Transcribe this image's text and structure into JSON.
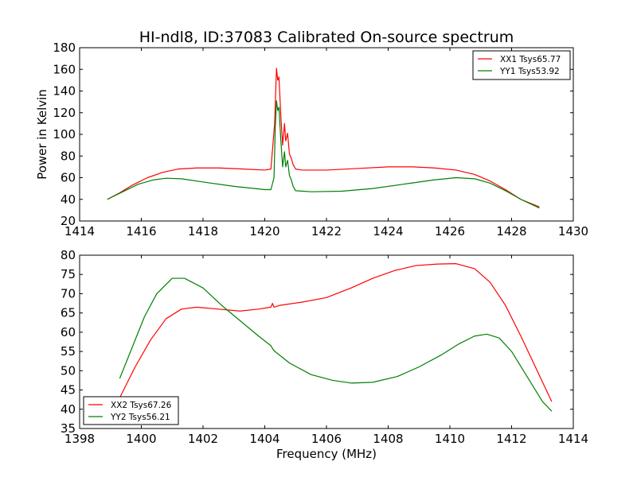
{
  "title": "HI-ndl8, ID:37083 Calibrated On-source spectrum",
  "chart_data": [
    {
      "type": "line",
      "ylabel": "Power in Kelvin",
      "xlabel": "",
      "xlim": [
        1414,
        1430
      ],
      "ylim": [
        20,
        180
      ],
      "xticks": [
        1414,
        1416,
        1418,
        1420,
        1422,
        1424,
        1426,
        1428,
        1430
      ],
      "yticks": [
        20,
        40,
        60,
        80,
        100,
        120,
        140,
        160,
        180
      ],
      "legend": "top-right",
      "series": [
        {
          "name": "XX1 Tsys65.77",
          "color": "#ff0000",
          "x": [
            1414.9,
            1415.3,
            1415.7,
            1416.2,
            1416.7,
            1417.2,
            1417.8,
            1418.5,
            1419.3,
            1420.0,
            1420.2,
            1420.32,
            1420.38,
            1420.42,
            1420.46,
            1420.52,
            1420.58,
            1420.64,
            1420.68,
            1420.74,
            1420.8,
            1420.86,
            1420.92,
            1421.0,
            1421.2,
            1422.0,
            1423.0,
            1424.0,
            1424.8,
            1425.5,
            1426.2,
            1426.8,
            1427.3,
            1427.8,
            1428.3,
            1428.9
          ],
          "y": [
            40,
            46,
            53,
            60,
            65,
            68,
            69,
            69,
            68,
            67,
            68,
            110,
            161,
            150,
            153,
            118,
            90,
            110,
            94,
            101,
            82,
            78,
            72,
            68,
            67,
            67,
            68.5,
            70,
            70,
            69,
            67,
            63,
            57,
            49,
            40,
            33
          ]
        },
        {
          "name": "YY1 Tsys53.92",
          "color": "#008000",
          "x": [
            1414.9,
            1415.4,
            1415.9,
            1416.4,
            1416.8,
            1417.3,
            1418.0,
            1419.0,
            1420.0,
            1420.2,
            1420.3,
            1420.34,
            1420.38,
            1420.42,
            1420.46,
            1420.52,
            1420.58,
            1420.64,
            1420.68,
            1420.74,
            1420.8,
            1420.86,
            1420.92,
            1421.0,
            1421.5,
            1422.5,
            1423.5,
            1424.5,
            1425.5,
            1426.2,
            1426.8,
            1427.3,
            1427.8,
            1428.3,
            1428.9
          ],
          "y": [
            40,
            47,
            54,
            58,
            59.5,
            59,
            56,
            52,
            49,
            49,
            60,
            105,
            131,
            122,
            125,
            95,
            70,
            84,
            70,
            76,
            62,
            58,
            52,
            48,
            47,
            47.5,
            50,
            54,
            58,
            60,
            59,
            55,
            48,
            40,
            32
          ]
        }
      ]
    },
    {
      "type": "line",
      "ylabel": "",
      "xlabel": "Frequency (MHz)",
      "xlim": [
        1398,
        1414
      ],
      "ylim": [
        35,
        80
      ],
      "xticks": [
        1398,
        1400,
        1402,
        1404,
        1406,
        1408,
        1410,
        1412,
        1414
      ],
      "yticks": [
        35,
        40,
        45,
        50,
        55,
        60,
        65,
        70,
        75,
        80
      ],
      "legend": "bottom-left",
      "series": [
        {
          "name": "XX2 Tsys67.26",
          "color": "#ff0000",
          "x": [
            1399.3,
            1399.8,
            1400.3,
            1400.8,
            1401.3,
            1401.8,
            1402.5,
            1403.2,
            1403.8,
            1404.2,
            1404.25,
            1404.3,
            1404.5,
            1405.2,
            1406.0,
            1406.8,
            1407.5,
            1408.2,
            1408.9,
            1409.6,
            1410.2,
            1410.8,
            1411.3,
            1411.8,
            1412.3,
            1412.8,
            1413.3
          ],
          "y": [
            43,
            51,
            58,
            63.5,
            66,
            66.5,
            66,
            65.5,
            66,
            66.5,
            67.5,
            66.5,
            67,
            67.8,
            69,
            71.5,
            74,
            76,
            77.3,
            77.7,
            77.8,
            76.5,
            73,
            67,
            59,
            50.5,
            42
          ]
        },
        {
          "name": "YY2 Tsys56.21",
          "color": "#008000",
          "x": [
            1399.3,
            1399.7,
            1400.1,
            1400.5,
            1401.0,
            1401.4,
            1402.0,
            1402.6,
            1403.2,
            1403.8,
            1404.2,
            1404.25,
            1404.3,
            1404.8,
            1405.5,
            1406.2,
            1406.8,
            1407.5,
            1408.3,
            1409.0,
            1409.7,
            1410.3,
            1410.8,
            1411.2,
            1411.6,
            1412.0,
            1412.5,
            1413.0,
            1413.3
          ],
          "y": [
            48,
            56,
            64,
            70,
            74,
            74,
            71.5,
            67,
            63,
            59,
            56.5,
            55.8,
            55.2,
            52,
            49,
            47.5,
            46.8,
            47,
            48.5,
            51,
            54,
            57,
            59,
            59.5,
            58.5,
            55,
            48.5,
            42,
            39.5
          ]
        }
      ]
    }
  ]
}
